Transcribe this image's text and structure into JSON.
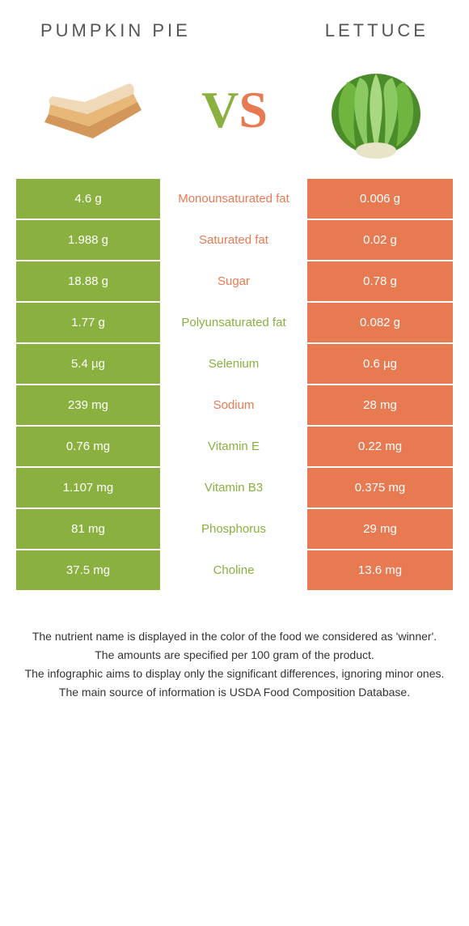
{
  "header": {
    "left_title": "PUMPKIN PIE",
    "right_title": "LETTUCE"
  },
  "vs": {
    "v": "V",
    "s": "S"
  },
  "colors": {
    "green": "#8ab03f",
    "orange": "#e87a52",
    "row_border": "#ffffff",
    "text_gray": "#555555"
  },
  "rows": [
    {
      "left": "4.6 g",
      "label": "Monounsaturated fat",
      "right": "0.006 g",
      "winner": "orange"
    },
    {
      "left": "1.988 g",
      "label": "Saturated fat",
      "right": "0.02 g",
      "winner": "orange"
    },
    {
      "left": "18.88 g",
      "label": "Sugar",
      "right": "0.78 g",
      "winner": "orange"
    },
    {
      "left": "1.77 g",
      "label": "Polyunsaturated fat",
      "right": "0.082 g",
      "winner": "green"
    },
    {
      "left": "5.4 µg",
      "label": "Selenium",
      "right": "0.6 µg",
      "winner": "green"
    },
    {
      "left": "239 mg",
      "label": "Sodium",
      "right": "28 mg",
      "winner": "orange"
    },
    {
      "left": "0.76 mg",
      "label": "Vitamin E",
      "right": "0.22 mg",
      "winner": "green"
    },
    {
      "left": "1.107 mg",
      "label": "Vitamin B3",
      "right": "0.375 mg",
      "winner": "green"
    },
    {
      "left": "81 mg",
      "label": "Phosphorus",
      "right": "29 mg",
      "winner": "green"
    },
    {
      "left": "37.5 mg",
      "label": "Choline",
      "right": "13.6 mg",
      "winner": "green"
    }
  ],
  "footer": {
    "line1": "The nutrient name is displayed in the color of the food we considered as 'winner'.",
    "line2": "The amounts are specified per 100 gram of the product.",
    "line3": "The infographic aims to display only the significant differences, ignoring minor ones.",
    "line4": "The main source of information is USDA Food Composition Database."
  }
}
